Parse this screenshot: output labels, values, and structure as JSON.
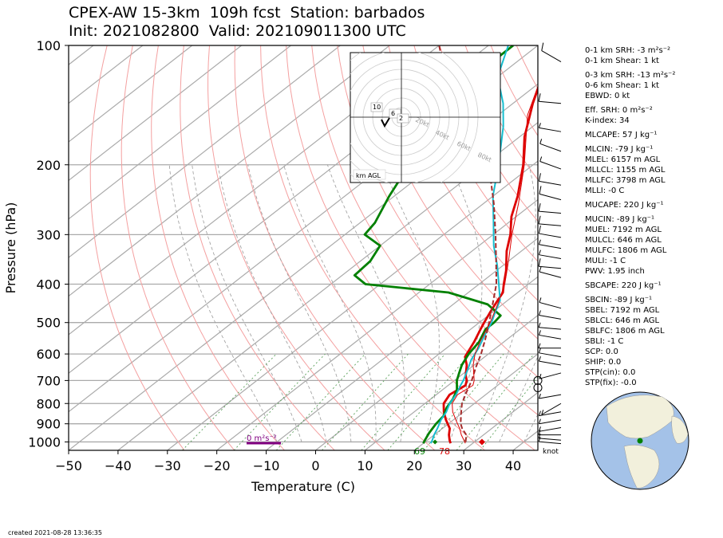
{
  "title": {
    "line1": "CPEX-AW 15-3km  109h fcst  Station: barbados",
    "line2": "Init: 2021082800  Valid: 202109011300 UTC"
  },
  "footer": {
    "created": "created 2021-08-28 13:36:35"
  },
  "indices": [
    {
      "label": "0-1 km SRH: -3 m²s⁻²"
    },
    {
      "label": "0-1 km Shear: 1 kt"
    },
    {
      "label": "0-3 km SRH: -13 m²s⁻²",
      "gap": true
    },
    {
      "label": "0-6 km Shear: 1 kt"
    },
    {
      "label": "EBWD: 0 kt"
    },
    {
      "label": "Eff. SRH: 0 m²s⁻²",
      "gap": true
    },
    {
      "label": "K-index: 34"
    },
    {
      "label": "MLCAPE: 57 J kg⁻¹",
      "gap": true
    },
    {
      "label": "MLCIN: -79 J kg⁻¹",
      "gap": true
    },
    {
      "label": "MLEL: 6157 m AGL"
    },
    {
      "label": "MLLCL: 1155 m AGL"
    },
    {
      "label": "MLLFC: 3798 m AGL"
    },
    {
      "label": "MLLI: -0 C"
    },
    {
      "label": "MUCAPE: 220 J kg⁻¹",
      "gap": true
    },
    {
      "label": "MUCIN: -89 J kg⁻¹",
      "gap": true
    },
    {
      "label": "MUEL: 7192 m AGL"
    },
    {
      "label": "MULCL: 646 m AGL"
    },
    {
      "label": "MULFC: 1806 m AGL"
    },
    {
      "label": "MULI: -1 C"
    },
    {
      "label": "PWV: 1.95 inch"
    },
    {
      "label": "SBCAPE: 220 J kg⁻¹",
      "gap": true
    },
    {
      "label": "SBCIN: -89 J kg⁻¹",
      "gap": true
    },
    {
      "label": "SBEL: 7192 m AGL"
    },
    {
      "label": "SBLCL: 646 m AGL"
    },
    {
      "label": "SBLFC: 1806 m AGL"
    },
    {
      "label": "SBLI: -1 C"
    },
    {
      "label": "SCP: 0.0"
    },
    {
      "label": "SHIP: 0.0"
    },
    {
      "label": "STP(cin): 0.0"
    },
    {
      "label": "STP(fix): -0.0"
    }
  ],
  "chart_data": {
    "type": "skew-t",
    "xlabel": "Temperature (C)",
    "ylabel": "Pressure (hPa)",
    "xlim": [
      -50,
      45
    ],
    "ylim": [
      1050,
      100
    ],
    "x_ticks": [
      "−50",
      "−40",
      "−30",
      "−20",
      "−10",
      "0",
      "10",
      "20",
      "30",
      "40"
    ],
    "x_tick_values": [
      -50,
      -40,
      -30,
      -20,
      -10,
      0,
      10,
      20,
      30,
      40
    ],
    "y_ticks": [
      "100",
      "200",
      "300",
      "400",
      "500",
      "600",
      "700",
      "800",
      "900",
      "1000"
    ],
    "y_tick_values": [
      100,
      200,
      300,
      400,
      500,
      600,
      700,
      800,
      900,
      1000
    ],
    "skew": 30,
    "series": [
      {
        "key": "temperature",
        "color": "#dd0000",
        "points": [
          [
            1008,
            25.5
          ],
          [
            990,
            24.5
          ],
          [
            960,
            23
          ],
          [
            925,
            21.5
          ],
          [
            880,
            18.5
          ],
          [
            840,
            16
          ],
          [
            800,
            13.8
          ],
          [
            760,
            12.7
          ],
          [
            720,
            13.5
          ],
          [
            700,
            12.5
          ],
          [
            680,
            11
          ],
          [
            640,
            8.5
          ],
          [
            610,
            6
          ],
          [
            560,
            4
          ],
          [
            520,
            2
          ],
          [
            500,
            1
          ],
          [
            470,
            -0.5
          ],
          [
            440,
            -2
          ],
          [
            420,
            -3
          ],
          [
            400,
            -5
          ],
          [
            370,
            -8
          ],
          [
            330,
            -13
          ],
          [
            300,
            -16.5
          ],
          [
            270,
            -21
          ],
          [
            240,
            -25
          ],
          [
            200,
            -32
          ],
          [
            170,
            -39
          ],
          [
            140,
            -46
          ],
          [
            120,
            -51
          ],
          [
            100,
            -57
          ]
        ]
      },
      {
        "key": "dewpoint",
        "color": "#008000",
        "points": [
          [
            1008,
            20
          ],
          [
            990,
            19.5
          ],
          [
            950,
            18.5
          ],
          [
            900,
            17.5
          ],
          [
            860,
            17
          ],
          [
            820,
            15.5
          ],
          [
            780,
            14.5
          ],
          [
            740,
            13
          ],
          [
            700,
            10.5
          ],
          [
            670,
            9
          ],
          [
            640,
            7.5
          ],
          [
            600,
            6
          ],
          [
            560,
            5
          ],
          [
            520,
            3
          ],
          [
            500,
            3
          ],
          [
            480,
            2.5
          ],
          [
            450,
            -3
          ],
          [
            420,
            -14
          ],
          [
            400,
            -33
          ],
          [
            380,
            -37.5
          ],
          [
            350,
            -38
          ],
          [
            320,
            -40
          ],
          [
            300,
            -46
          ],
          [
            280,
            -47
          ],
          [
            240,
            -51
          ],
          [
            210,
            -54
          ],
          [
            200,
            -55
          ],
          [
            180,
            -59
          ],
          [
            160,
            -62
          ],
          [
            150,
            -63
          ],
          [
            130,
            -65
          ],
          [
            110,
            -65
          ],
          [
            100,
            -65
          ]
        ]
      },
      {
        "key": "wetbulb",
        "color": "#17becf",
        "points": [
          [
            1008,
            21.5
          ],
          [
            990,
            21
          ],
          [
            960,
            20
          ],
          [
            925,
            19
          ],
          [
            880,
            17.5
          ],
          [
            840,
            16.5
          ],
          [
            800,
            15
          ],
          [
            760,
            14
          ],
          [
            720,
            12.5
          ],
          [
            700,
            11.8
          ],
          [
            660,
            10
          ],
          [
            620,
            8
          ],
          [
            580,
            6.5
          ],
          [
            540,
            4.5
          ],
          [
            500,
            2.5
          ],
          [
            470,
            0.5
          ],
          [
            440,
            -1.5
          ],
          [
            400,
            -6
          ],
          [
            360,
            -11
          ],
          [
            320,
            -17
          ],
          [
            280,
            -23
          ],
          [
            240,
            -30
          ],
          [
            200,
            -37
          ],
          [
            160,
            -46
          ],
          [
            140,
            -52
          ],
          [
            120,
            -60
          ],
          [
            100,
            -66
          ]
        ]
      },
      {
        "key": "parcel",
        "color": "#a52a2a",
        "points": [
          [
            1000,
            28.2
          ],
          [
            960,
            26.5
          ],
          [
            925,
            24
          ],
          [
            900,
            22.5
          ],
          [
            850,
            20
          ],
          [
            800,
            17.5
          ],
          [
            750,
            15.5
          ],
          [
            700,
            13.5
          ],
          [
            650,
            11
          ],
          [
            600,
            8.5
          ],
          [
            550,
            5.5
          ],
          [
            500,
            2
          ],
          [
            450,
            -2
          ],
          [
            400,
            -6.5
          ],
          [
            350,
            -12.5
          ],
          [
            300,
            -19.5
          ],
          [
            250,
            -28
          ],
          [
            200,
            -39
          ],
          [
            160,
            -52
          ],
          [
            130,
            -64
          ],
          [
            110,
            -75
          ],
          [
            100,
            -80
          ]
        ]
      },
      {
        "key": "virtual_temperature",
        "color": "#dd0000",
        "points": [
          [
            1008,
            28.5
          ],
          [
            960,
            25.5
          ],
          [
            925,
            23.5
          ],
          [
            880,
            20.5
          ],
          [
            840,
            17.8
          ],
          [
            800,
            15.5
          ],
          [
            760,
            14.3
          ],
          [
            720,
            15
          ],
          [
            700,
            14
          ],
          [
            640,
            9.8
          ],
          [
            600,
            7.3
          ],
          [
            560,
            5.2
          ],
          [
            500,
            2.2
          ],
          [
            450,
            -1
          ],
          [
            400,
            -4.8
          ],
          [
            350,
            -10
          ],
          [
            300,
            -16.2
          ],
          [
            250,
            -23
          ],
          [
            200,
            -31.8
          ],
          [
            150,
            -44
          ],
          [
            100,
            -57
          ]
        ]
      }
    ],
    "surface": {
      "temperature_label": "78",
      "dewpoint_label": "69"
    },
    "srh_bar_label": "0 m²s⁻²",
    "wind_barbs": {
      "unit_label": "knot",
      "pressures": [
        110,
        140,
        165,
        185,
        205,
        225,
        245,
        265,
        285,
        305,
        325,
        345,
        365,
        385,
        460,
        490,
        520,
        550,
        580,
        610,
        640,
        670,
        700,
        730,
        760,
        800,
        840,
        880,
        920,
        960,
        990,
        1010
      ],
      "speeds_kt": [
        10,
        10,
        5,
        5,
        5,
        10,
        10,
        10,
        10,
        10,
        5,
        5,
        10,
        5,
        5,
        5,
        5,
        5,
        5,
        5,
        5,
        5,
        0,
        0,
        5,
        5,
        5,
        5,
        5,
        5,
        5,
        5
      ],
      "directions_deg": [
        120,
        95,
        100,
        110,
        110,
        100,
        105,
        95,
        95,
        100,
        100,
        100,
        95,
        105,
        105,
        100,
        95,
        100,
        90,
        100,
        100,
        75,
        0,
        0,
        80,
        60,
        80,
        80,
        80,
        90,
        95,
        95
      ]
    },
    "hodograph": {
      "axis_label": "km AGL",
      "ring_labels": [
        "20kt",
        "40kt",
        "60kt",
        "80kt"
      ],
      "height_labels": [
        "10",
        "6",
        "2"
      ]
    }
  }
}
